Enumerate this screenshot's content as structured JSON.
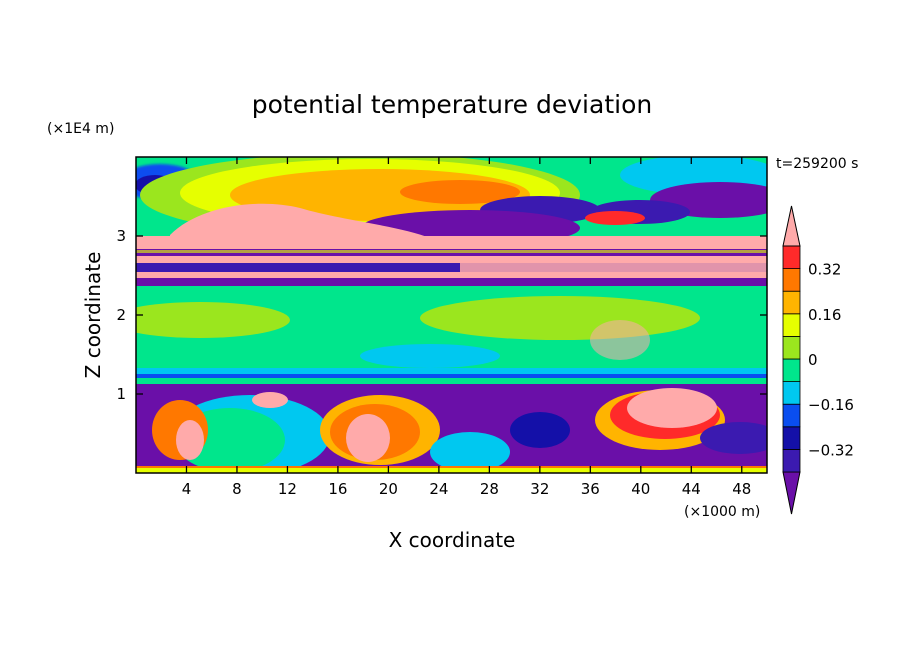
{
  "chart_data": {
    "type": "heatmap",
    "title": "potential temperature deviation",
    "xlabel": "X coordinate",
    "ylabel": "Z coordinate",
    "x_unit": "(×1000 m)",
    "y_unit": "(×1E4 m)",
    "time_label": "t=259200 s",
    "xlim": [
      0,
      50
    ],
    "ylim": [
      0,
      4
    ],
    "x_ticks": [
      4,
      8,
      12,
      16,
      20,
      24,
      28,
      32,
      36,
      40,
      44,
      48
    ],
    "y_ticks": [
      1,
      2,
      3
    ],
    "colorbar": {
      "levels": [
        -0.4,
        -0.32,
        -0.24,
        -0.16,
        -0.08,
        0,
        0.08,
        0.16,
        0.24,
        0.32,
        0.4
      ],
      "tick_labels": [
        "0.32",
        "0.16",
        "0",
        "−0.16",
        "−0.32"
      ],
      "tick_values": [
        0.32,
        0.16,
        0,
        -0.16,
        -0.32
      ],
      "colors": [
        "#6a0fa8",
        "#3b1ab0",
        "#1410a8",
        "#0a4ef0",
        "#00c8f0",
        "#00e68c",
        "#9be61e",
        "#e6ff00",
        "#ffb400",
        "#ff7800",
        "#ff2a2a",
        "#ffaaaa"
      ]
    }
  }
}
